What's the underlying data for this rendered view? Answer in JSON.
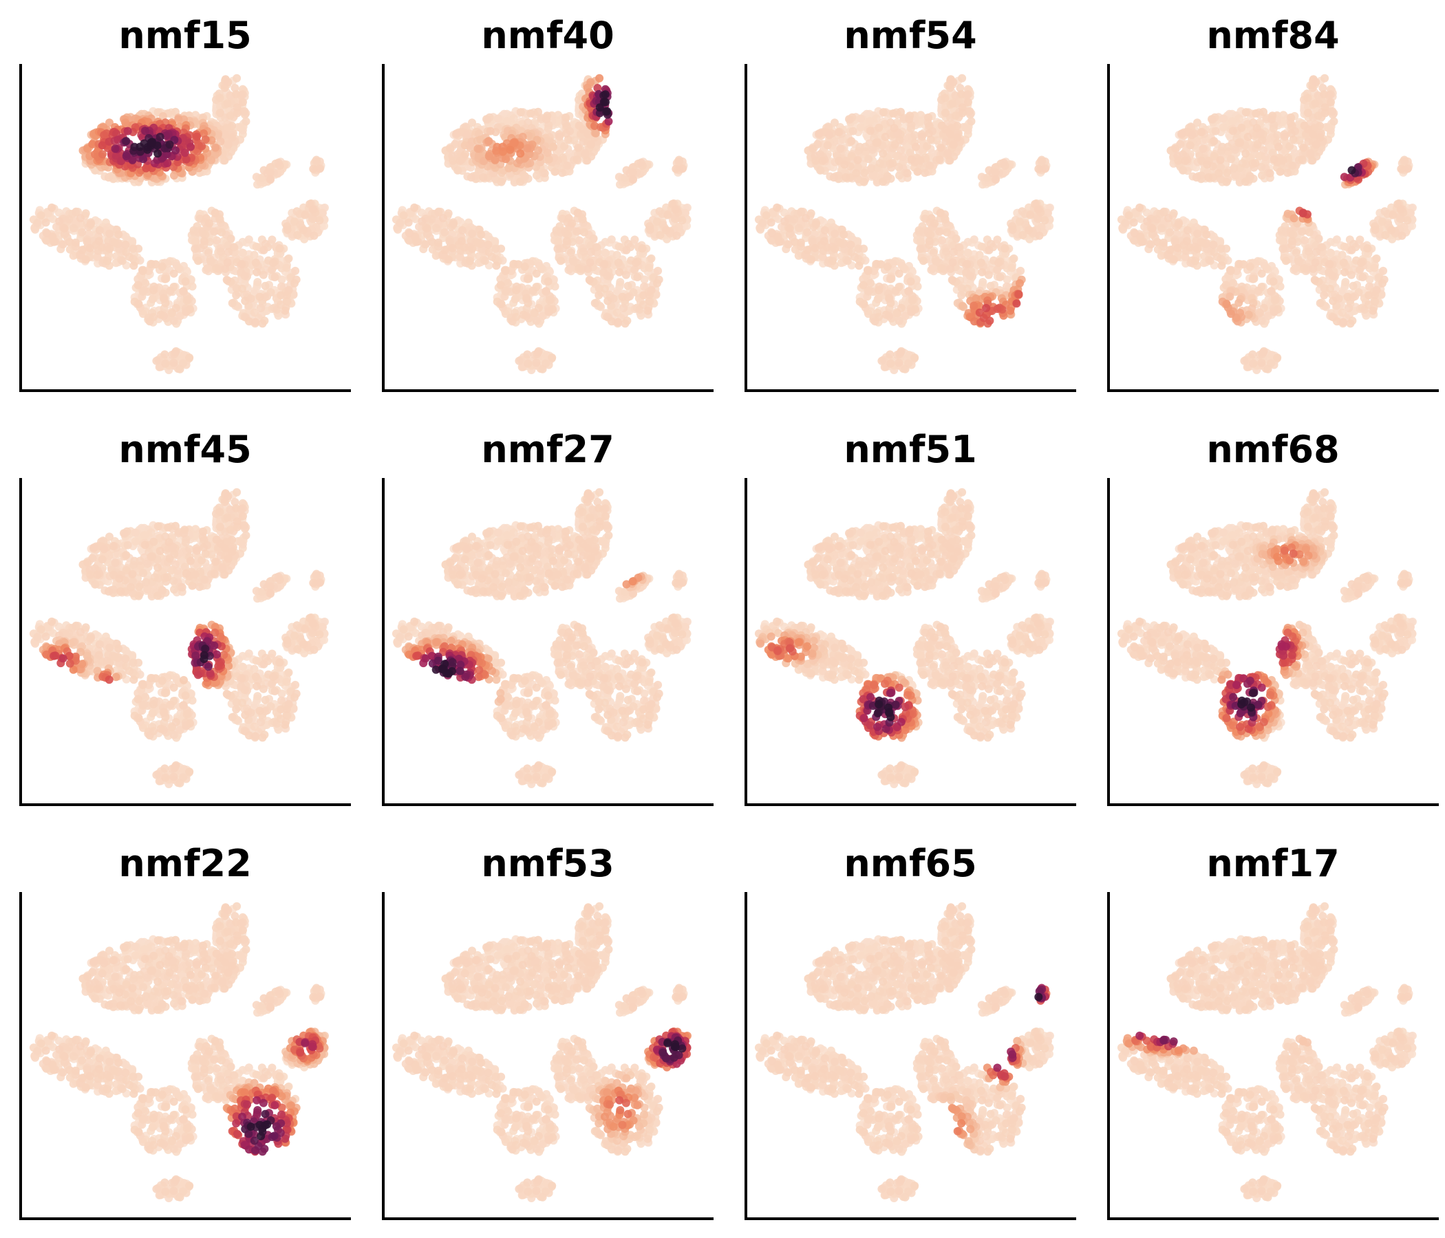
{
  "chart_data": {
    "type": "scatter",
    "layout": "grid 3x4 small multiples",
    "description": "tSNE embedding colored by NMF factor loading; light = low, dark = high",
    "colormap": [
      "#faeadd",
      "#f5c4a8",
      "#ef8a62",
      "#d84d4d",
      "#a8245a",
      "#6b1a57",
      "#2b1331"
    ],
    "grid": false,
    "ticks": false,
    "panels": [
      {
        "title": "nmf15",
        "hotspots": [
          {
            "cx": 0.39,
            "cy": 0.25,
            "rx": 0.17,
            "ry": 0.08,
            "level": 0.92
          },
          {
            "cx": 0.52,
            "cy": 0.24,
            "rx": 0.08,
            "ry": 0.07,
            "level": 0.45
          }
        ]
      },
      {
        "title": "nmf40",
        "hotspots": [
          {
            "cx": 0.68,
            "cy": 0.12,
            "rx": 0.06,
            "ry": 0.08,
            "level": 0.97
          },
          {
            "cx": 0.38,
            "cy": 0.26,
            "rx": 0.14,
            "ry": 0.07,
            "level": 0.3
          }
        ]
      },
      {
        "title": "nmf54",
        "hotspots": [
          {
            "cx": 0.86,
            "cy": 0.75,
            "rx": 0.05,
            "ry": 0.08,
            "level": 0.97
          },
          {
            "cx": 0.74,
            "cy": 0.76,
            "rx": 0.09,
            "ry": 0.06,
            "level": 0.5
          }
        ]
      },
      {
        "title": "nmf84",
        "hotspots": [
          {
            "cx": 0.73,
            "cy": 0.32,
            "rx": 0.07,
            "ry": 0.04,
            "level": 0.9
          },
          {
            "cx": 0.62,
            "cy": 0.44,
            "rx": 0.09,
            "ry": 0.04,
            "level": 0.55
          },
          {
            "cx": 0.36,
            "cy": 0.76,
            "rx": 0.1,
            "ry": 0.08,
            "level": 0.25
          }
        ]
      },
      {
        "title": "nmf45",
        "hotspots": [
          {
            "cx": 0.26,
            "cy": 0.68,
            "rx": 0.05,
            "ry": 0.08,
            "level": 0.95
          },
          {
            "cx": 0.56,
            "cy": 0.54,
            "rx": 0.07,
            "ry": 0.09,
            "level": 0.85
          },
          {
            "cx": 0.12,
            "cy": 0.56,
            "rx": 0.08,
            "ry": 0.06,
            "level": 0.5
          }
        ]
      },
      {
        "title": "nmf27",
        "hotspots": [
          {
            "cx": 0.18,
            "cy": 0.6,
            "rx": 0.13,
            "ry": 0.09,
            "level": 0.95
          },
          {
            "cx": 0.29,
            "cy": 0.66,
            "rx": 0.06,
            "ry": 0.06,
            "level": 0.6
          },
          {
            "cx": 0.73,
            "cy": 0.3,
            "rx": 0.06,
            "ry": 0.03,
            "level": 0.45
          }
        ]
      },
      {
        "title": "nmf51",
        "hotspots": [
          {
            "cx": 0.42,
            "cy": 0.71,
            "rx": 0.09,
            "ry": 0.09,
            "level": 0.95
          },
          {
            "cx": 0.12,
            "cy": 0.52,
            "rx": 0.11,
            "ry": 0.05,
            "level": 0.4
          }
        ]
      },
      {
        "title": "nmf68",
        "hotspots": [
          {
            "cx": 0.42,
            "cy": 0.68,
            "rx": 0.08,
            "ry": 0.1,
            "level": 0.92
          },
          {
            "cx": 0.53,
            "cy": 0.52,
            "rx": 0.06,
            "ry": 0.08,
            "level": 0.6
          },
          {
            "cx": 0.55,
            "cy": 0.23,
            "rx": 0.1,
            "ry": 0.05,
            "level": 0.35
          }
        ]
      },
      {
        "title": "nmf22",
        "hotspots": [
          {
            "cx": 0.73,
            "cy": 0.72,
            "rx": 0.1,
            "ry": 0.12,
            "level": 0.95
          },
          {
            "cx": 0.87,
            "cy": 0.47,
            "rx": 0.06,
            "ry": 0.05,
            "level": 0.6
          }
        ]
      },
      {
        "title": "nmf53",
        "hotspots": [
          {
            "cx": 0.88,
            "cy": 0.48,
            "rx": 0.07,
            "ry": 0.06,
            "level": 0.97
          },
          {
            "cx": 0.72,
            "cy": 0.66,
            "rx": 0.08,
            "ry": 0.1,
            "level": 0.4
          }
        ]
      },
      {
        "title": "nmf65",
        "hotspots": [
          {
            "cx": 0.78,
            "cy": 0.5,
            "rx": 0.05,
            "ry": 0.08,
            "level": 0.9
          },
          {
            "cx": 0.89,
            "cy": 0.31,
            "rx": 0.03,
            "ry": 0.04,
            "level": 0.85
          },
          {
            "cx": 0.62,
            "cy": 0.72,
            "rx": 0.09,
            "ry": 0.1,
            "level": 0.35
          }
        ]
      },
      {
        "title": "nmf17",
        "hotspots": [
          {
            "cx": 0.2,
            "cy": 0.42,
            "rx": 0.16,
            "ry": 0.06,
            "level": 0.96
          },
          {
            "cx": 0.63,
            "cy": 0.43,
            "rx": 0.06,
            "ry": 0.03,
            "level": 0.4
          }
        ]
      }
    ]
  }
}
